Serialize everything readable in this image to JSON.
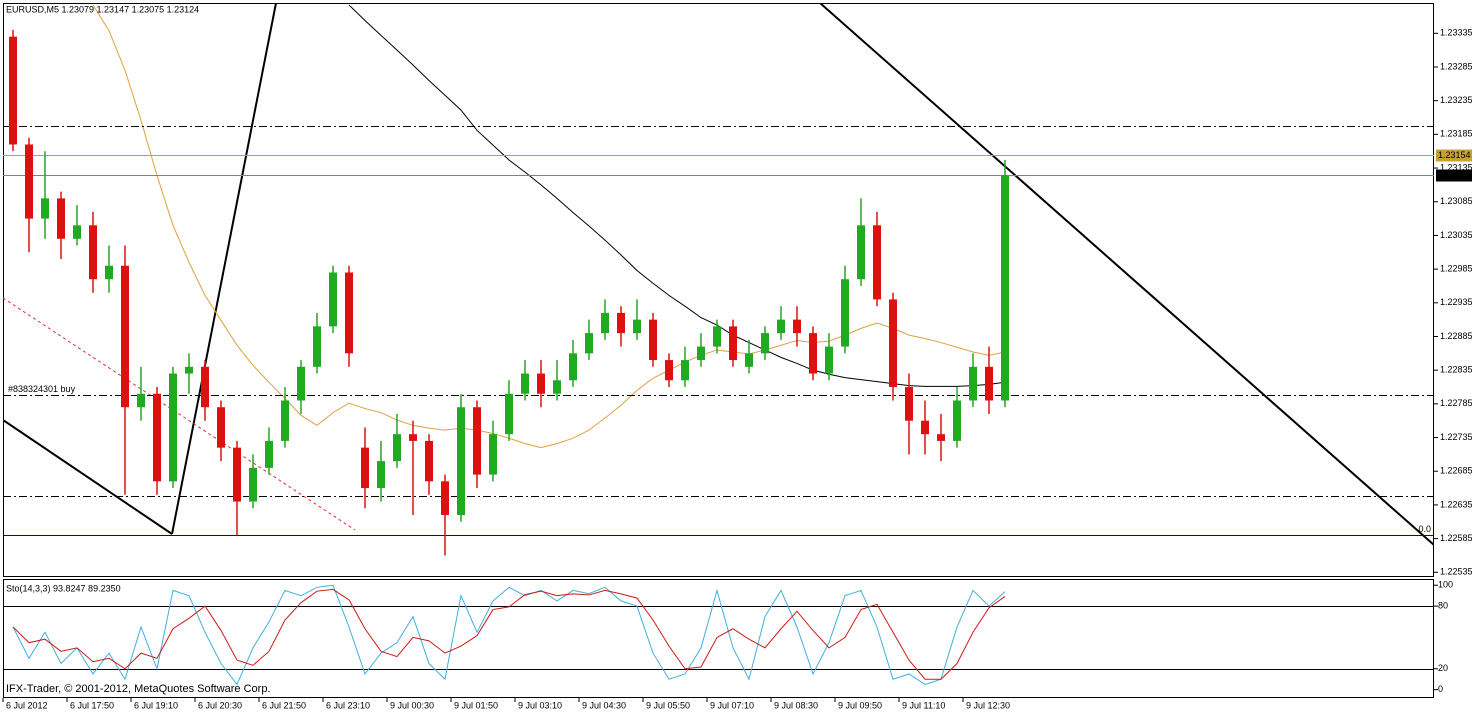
{
  "chart_data": [
    {
      "type": "candlestick",
      "title": "EURUSD,M5  1.23079 1.23147 1.23075 1.23124",
      "categories": [
        "6 Jul 2012",
        null,
        null,
        null,
        "6 Jul 17:50",
        null,
        null,
        null,
        "6 Jul 19:10",
        null,
        null,
        null,
        "6 Jul 20:30",
        null,
        null,
        null,
        "6 Jul 21:50",
        null,
        null,
        null,
        "6 Jul 23:10",
        null,
        null,
        null,
        "9 Jul 00:30",
        null,
        null,
        null,
        "9 Jul 01:50",
        null,
        null,
        null,
        "9 Jul 03:10",
        null,
        null,
        null,
        "9 Jul 04:30",
        null,
        null,
        null,
        "9 Jul 05:50",
        null,
        null,
        null,
        "9 Jul 07:10",
        null,
        null,
        null,
        "9 Jul 08:30",
        null,
        null,
        null,
        "9 Jul 09:50",
        null,
        null,
        null,
        "9 Jul 11:10",
        null,
        null,
        null,
        "9 Jul 12:30",
        null,
        null
      ],
      "open": [
        1.2333,
        1.2317,
        1.2306,
        1.2309,
        1.2303,
        1.2305,
        1.2297,
        1.2299,
        1.2278,
        1.228,
        1.2267,
        1.2283,
        1.2284,
        1.2278,
        1.2272,
        1.2264,
        1.2269,
        1.2273,
        1.2279,
        1.2284,
        1.229,
        1.2298,
        1.2272,
        1.2266,
        1.227,
        1.2274,
        1.2273,
        1.2267,
        1.2262,
        1.2278,
        1.2268,
        1.2274,
        1.228,
        1.2283,
        1.228,
        1.2282,
        1.2286,
        1.2289,
        1.2292,
        1.2289,
        1.2291,
        1.2285,
        1.2282,
        1.2285,
        1.2287,
        1.229,
        1.2284,
        1.2286,
        1.2289,
        1.2291,
        1.2289,
        1.2283,
        1.2287,
        1.2297,
        1.2305,
        1.2294,
        1.2281,
        1.2276,
        1.2274,
        1.2273,
        1.2279,
        1.2284,
        1.2279
      ],
      "high": [
        1.2334,
        1.2318,
        1.2316,
        1.231,
        1.2308,
        1.2307,
        1.2302,
        1.2302,
        1.2284,
        1.2281,
        1.2284,
        1.2286,
        1.2285,
        1.2279,
        1.2273,
        1.2271,
        1.2275,
        1.2281,
        1.2285,
        1.2292,
        1.2299,
        1.2299,
        1.2275,
        1.2273,
        1.2277,
        1.2276,
        1.2274,
        1.2268,
        1.228,
        1.2279,
        1.2276,
        1.2282,
        1.2285,
        1.2285,
        1.2285,
        1.2288,
        1.2291,
        1.2294,
        1.2293,
        1.2294,
        1.2292,
        1.2286,
        1.2287,
        1.2289,
        1.2291,
        1.2291,
        1.2288,
        1.229,
        1.2293,
        1.2293,
        1.229,
        1.2289,
        1.2299,
        1.2309,
        1.2307,
        1.2295,
        1.2283,
        1.2279,
        1.2277,
        1.2281,
        1.2286,
        1.2287,
        1.23147
      ],
      "low": [
        1.2316,
        1.2301,
        1.2303,
        1.23,
        1.2302,
        1.2295,
        1.2295,
        1.2265,
        1.2276,
        1.2265,
        1.2266,
        1.228,
        1.2276,
        1.227,
        1.2259,
        1.2263,
        1.2268,
        1.2272,
        1.2277,
        1.2283,
        1.2289,
        1.2284,
        1.2263,
        1.2264,
        1.2269,
        1.2262,
        1.2265,
        1.2256,
        1.2261,
        1.2266,
        1.2267,
        1.2273,
        1.2279,
        1.2278,
        1.2279,
        1.2281,
        1.2285,
        1.2288,
        1.2287,
        1.2288,
        1.2284,
        1.2281,
        1.2281,
        1.2284,
        1.2286,
        1.2284,
        1.2283,
        1.2285,
        1.2288,
        1.2287,
        1.2282,
        1.2282,
        1.2286,
        1.2296,
        1.2293,
        1.2279,
        1.2271,
        1.2271,
        1.227,
        1.2272,
        1.2278,
        1.2277,
        1.2278
      ],
      "close": [
        1.2317,
        1.2306,
        1.2309,
        1.2303,
        1.2305,
        1.2297,
        1.2299,
        1.2278,
        1.228,
        1.2267,
        1.2283,
        1.2284,
        1.2278,
        1.2272,
        1.2264,
        1.2269,
        1.2273,
        1.2279,
        1.2284,
        1.229,
        1.2298,
        1.2286,
        1.2266,
        1.227,
        1.2274,
        1.2273,
        1.2267,
        1.2262,
        1.2278,
        1.2268,
        1.2274,
        1.228,
        1.2283,
        1.228,
        1.2282,
        1.2286,
        1.2289,
        1.2292,
        1.2289,
        1.2291,
        1.2285,
        1.2282,
        1.2285,
        1.2287,
        1.229,
        1.2285,
        1.2286,
        1.2289,
        1.2291,
        1.2289,
        1.2283,
        1.2287,
        1.2297,
        1.2305,
        1.2294,
        1.2281,
        1.2276,
        1.2274,
        1.2273,
        1.2279,
        1.2284,
        1.2279,
        1.23124
      ],
      "bull_color": "#22a822",
      "bear_color": "#e01010",
      "ma": [
        {
          "color": "#e0a040",
          "values": [
            null,
            null,
            null,
            null,
            null,
            1.23377,
            1.23339,
            1.2328,
            1.23206,
            1.23124,
            1.2305,
            1.22995,
            1.22946,
            1.22909,
            1.22872,
            1.22842,
            1.22817,
            1.22793,
            1.22768,
            1.22753,
            1.22772,
            1.22786,
            1.22778,
            1.22772,
            1.22761,
            1.22753,
            1.22749,
            1.22746,
            1.22749,
            1.22746,
            1.22741,
            1.22734,
            1.22726,
            1.2272,
            1.22726,
            1.22734,
            1.22746,
            1.22764,
            1.22783,
            1.22805,
            1.22823,
            1.22835,
            1.22847,
            1.22857,
            1.22865,
            1.22862,
            1.22859,
            1.22865,
            1.22872,
            1.22879,
            1.22876,
            1.22878,
            1.22887,
            1.22897,
            1.22905,
            1.22897,
            1.22887,
            1.22882,
            1.22876,
            1.22869,
            1.22862,
            1.22857,
            1.22862
          ]
        },
        {
          "color": "#000000",
          "values": [
            null,
            null,
            null,
            null,
            null,
            null,
            null,
            null,
            null,
            null,
            null,
            null,
            null,
            null,
            null,
            null,
            null,
            null,
            null,
            null,
            null,
            1.23377,
            1.23354,
            1.23332,
            1.2331,
            1.23288,
            1.23265,
            1.23243,
            1.23221,
            1.23191,
            1.23169,
            1.23147,
            1.23129,
            1.2311,
            1.2309,
            1.23069,
            1.23049,
            1.23028,
            1.23006,
            1.22983,
            1.22964,
            1.22946,
            1.2293,
            1.22913,
            1.22902,
            1.22887,
            1.22876,
            1.22865,
            1.22854,
            1.22845,
            1.22835,
            1.22829,
            1.22824,
            1.22821,
            1.22818,
            1.22815,
            1.22812,
            1.22811,
            1.22811,
            1.22811,
            1.22812,
            1.22814,
            1.22817
          ]
        }
      ],
      "levels": [
        {
          "value": 1.23198,
          "color": "#000000",
          "style": "dashdot"
        },
        {
          "value": 1.23154,
          "color": "#c8a032",
          "style": "solid",
          "tag_color": "#c8a032"
        },
        {
          "value": 1.23124,
          "color": "#808080",
          "style": "solid",
          "tag_color": "#000000"
        },
        {
          "value": 1.22798,
          "color": "#000000",
          "style": "dashdot",
          "label": "#838324301 buy"
        },
        {
          "value": 1.22648,
          "color": "#000000",
          "style": "dashdot"
        },
        {
          "value": 1.22591,
          "color": "#0000c0",
          "style": "solid",
          "label": "0.0"
        }
      ],
      "ylim": [
        1.22528,
        1.2338
      ],
      "yticks": [
        1.22535,
        1.22585,
        1.22635,
        1.22685,
        1.22735,
        1.22785,
        1.22835,
        1.22885,
        1.22935,
        1.22985,
        1.23035,
        1.23085,
        1.23135,
        1.23185,
        1.23235,
        1.23285,
        1.23335
      ]
    },
    {
      "type": "line",
      "title": "Sto(14,3,3) 93.8247 89.2350",
      "annotation": "IFX-Trader, © 2001-2012, MetaQuotes Software Corp.",
      "series": [
        {
          "color": "#3fb0e0",
          "values": [
            60,
            30,
            55,
            25,
            40,
            15,
            35,
            10,
            60,
            20,
            95,
            90,
            55,
            25,
            5,
            40,
            65,
            95,
            90,
            98,
            100,
            60,
            15,
            35,
            45,
            70,
            25,
            10,
            90,
            55,
            85,
            98,
            90,
            95,
            85,
            95,
            92,
            98,
            85,
            80,
            35,
            10,
            15,
            40,
            95,
            40,
            10,
            70,
            95,
            60,
            15,
            45,
            90,
            95,
            60,
            10,
            15,
            5,
            10,
            60,
            95,
            80,
            93.8247
          ]
        },
        {
          "color": "#d01818",
          "values": [
            60,
            45,
            48.3,
            36.7,
            40,
            26.7,
            30,
            20,
            35,
            30,
            58.3,
            68.3,
            80,
            56.7,
            28.3,
            23.3,
            36.7,
            66.7,
            83.3,
            94.3,
            96,
            86,
            58.3,
            36.7,
            31.7,
            50,
            46.7,
            35,
            41.7,
            51.7,
            76.7,
            79.3,
            91,
            94.3,
            90,
            91.7,
            90.7,
            95,
            91.7,
            87.7,
            66.7,
            41.7,
            20,
            21.7,
            50,
            58.3,
            48.3,
            40,
            58.3,
            75,
            56.7,
            40,
            50,
            76.7,
            81.7,
            55,
            28.3,
            10,
            10,
            25,
            55,
            78.3,
            89.235
          ]
        }
      ],
      "ylim": [
        -8,
        105
      ],
      "yticks": [
        0,
        20,
        80,
        100
      ],
      "levels": [
        20,
        80
      ]
    }
  ]
}
